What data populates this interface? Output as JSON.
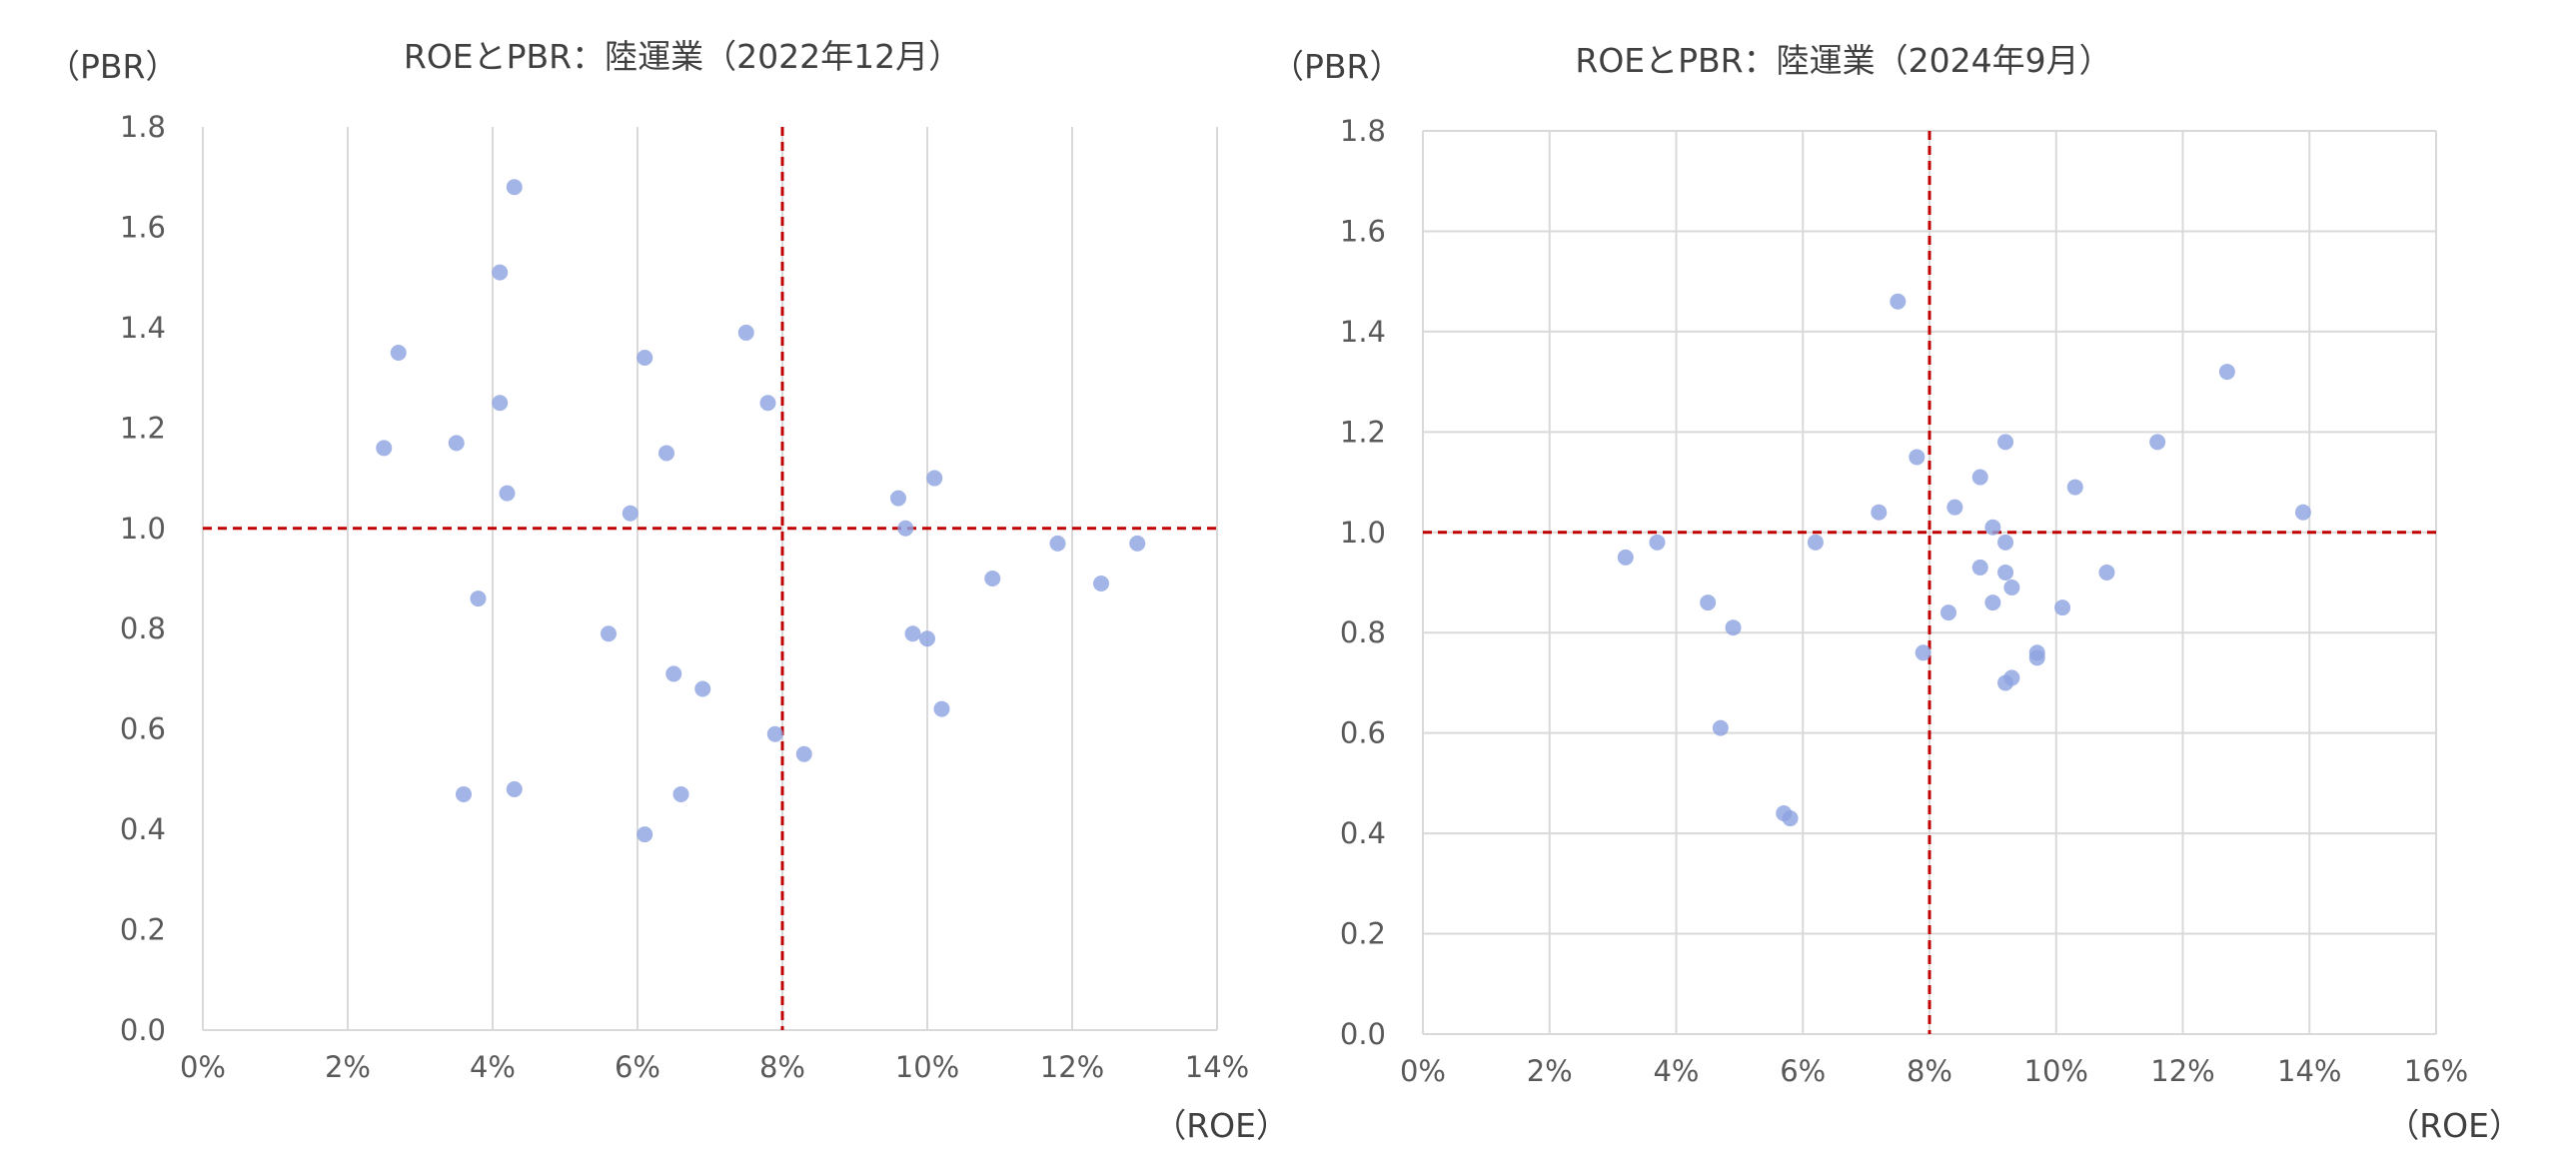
{
  "chart_data": [
    {
      "type": "scatter",
      "title": "ROEとPBR：陸運業（2022年12月）",
      "ylabel": "（PBR）",
      "xlabel": "（ROE）",
      "x_unit": "%",
      "xlim": [
        0,
        14
      ],
      "ylim": [
        0,
        1.8
      ],
      "x_ticks": [
        0,
        2,
        4,
        6,
        8,
        10,
        12,
        14
      ],
      "x_tick_labels": [
        "0%",
        "2%",
        "4%",
        "6%",
        "8%",
        "10%",
        "12%",
        "14%"
      ],
      "y_ticks": [
        0,
        0.2,
        0.4,
        0.6,
        0.8,
        1.0,
        1.2,
        1.4,
        1.6,
        1.8
      ],
      "y_tick_labels": [
        "0.0",
        "0.2",
        "0.4",
        "0.6",
        "0.8",
        "1.0",
        "1.2",
        "1.4",
        "1.6",
        "1.8"
      ],
      "grid": "vertical",
      "reference_lines": {
        "x": 8,
        "y": 1.0
      },
      "colors": {
        "point": "#8FA3E0",
        "reference": "#C00000",
        "grid": "#D9D9D9"
      },
      "points": [
        {
          "x": 2.5,
          "y": 1.16
        },
        {
          "x": 2.7,
          "y": 1.35
        },
        {
          "x": 3.5,
          "y": 1.17
        },
        {
          "x": 3.6,
          "y": 0.47
        },
        {
          "x": 3.8,
          "y": 0.86
        },
        {
          "x": 4.1,
          "y": 1.25
        },
        {
          "x": 4.1,
          "y": 1.51
        },
        {
          "x": 4.2,
          "y": 1.07
        },
        {
          "x": 4.3,
          "y": 1.68
        },
        {
          "x": 4.3,
          "y": 0.48
        },
        {
          "x": 5.6,
          "y": 0.79
        },
        {
          "x": 5.9,
          "y": 1.03
        },
        {
          "x": 6.1,
          "y": 1.34
        },
        {
          "x": 6.1,
          "y": 0.39
        },
        {
          "x": 6.4,
          "y": 1.15
        },
        {
          "x": 6.5,
          "y": 0.71
        },
        {
          "x": 6.6,
          "y": 0.47
        },
        {
          "x": 6.9,
          "y": 0.68
        },
        {
          "x": 7.5,
          "y": 1.39
        },
        {
          "x": 7.8,
          "y": 1.25
        },
        {
          "x": 7.9,
          "y": 0.59
        },
        {
          "x": 8.3,
          "y": 0.55
        },
        {
          "x": 9.6,
          "y": 1.06
        },
        {
          "x": 9.7,
          "y": 1.0
        },
        {
          "x": 9.8,
          "y": 0.79
        },
        {
          "x": 10.0,
          "y": 0.78
        },
        {
          "x": 10.1,
          "y": 1.1
        },
        {
          "x": 10.2,
          "y": 0.64
        },
        {
          "x": 10.9,
          "y": 0.9
        },
        {
          "x": 11.8,
          "y": 0.97
        },
        {
          "x": 12.4,
          "y": 0.89
        },
        {
          "x": 12.9,
          "y": 0.97
        }
      ]
    },
    {
      "type": "scatter",
      "title": "ROEとPBR：陸運業（2024年9月）",
      "ylabel": "（PBR）",
      "xlabel": "（ROE）",
      "x_unit": "%",
      "xlim": [
        0,
        16
      ],
      "ylim": [
        0,
        1.8
      ],
      "x_ticks": [
        0,
        2,
        4,
        6,
        8,
        10,
        12,
        14,
        16
      ],
      "x_tick_labels": [
        "0%",
        "2%",
        "4%",
        "6%",
        "8%",
        "10%",
        "12%",
        "14%",
        "16%"
      ],
      "y_ticks": [
        0,
        0.2,
        0.4,
        0.6,
        0.8,
        1.0,
        1.2,
        1.4,
        1.6,
        1.8
      ],
      "y_tick_labels": [
        "0.0",
        "0.2",
        "0.4",
        "0.6",
        "0.8",
        "1.0",
        "1.2",
        "1.4",
        "1.6",
        "1.8"
      ],
      "grid": "both",
      "reference_lines": {
        "x": 8,
        "y": 1.0
      },
      "colors": {
        "point": "#8FA3E0",
        "reference": "#C00000",
        "grid": "#D9D9D9"
      },
      "points": [
        {
          "x": 3.2,
          "y": 0.95
        },
        {
          "x": 3.7,
          "y": 0.98
        },
        {
          "x": 4.5,
          "y": 0.86
        },
        {
          "x": 4.7,
          "y": 0.61
        },
        {
          "x": 4.9,
          "y": 0.81
        },
        {
          "x": 5.7,
          "y": 0.44
        },
        {
          "x": 5.8,
          "y": 0.43
        },
        {
          "x": 6.2,
          "y": 0.98
        },
        {
          "x": 7.2,
          "y": 1.04
        },
        {
          "x": 7.5,
          "y": 1.46
        },
        {
          "x": 7.8,
          "y": 1.15
        },
        {
          "x": 7.9,
          "y": 0.76
        },
        {
          "x": 8.3,
          "y": 0.84
        },
        {
          "x": 8.4,
          "y": 1.05
        },
        {
          "x": 8.8,
          "y": 1.11
        },
        {
          "x": 8.8,
          "y": 0.93
        },
        {
          "x": 9.0,
          "y": 0.86
        },
        {
          "x": 9.0,
          "y": 1.01
        },
        {
          "x": 9.2,
          "y": 1.18
        },
        {
          "x": 9.2,
          "y": 0.92
        },
        {
          "x": 9.2,
          "y": 0.98
        },
        {
          "x": 9.3,
          "y": 0.89
        },
        {
          "x": 9.2,
          "y": 0.7
        },
        {
          "x": 9.3,
          "y": 0.71
        },
        {
          "x": 9.7,
          "y": 0.75
        },
        {
          "x": 9.7,
          "y": 0.76
        },
        {
          "x": 10.1,
          "y": 0.85
        },
        {
          "x": 10.3,
          "y": 1.09
        },
        {
          "x": 10.8,
          "y": 0.92
        },
        {
          "x": 11.6,
          "y": 1.18
        },
        {
          "x": 12.7,
          "y": 1.32
        },
        {
          "x": 13.9,
          "y": 1.04
        }
      ]
    }
  ]
}
